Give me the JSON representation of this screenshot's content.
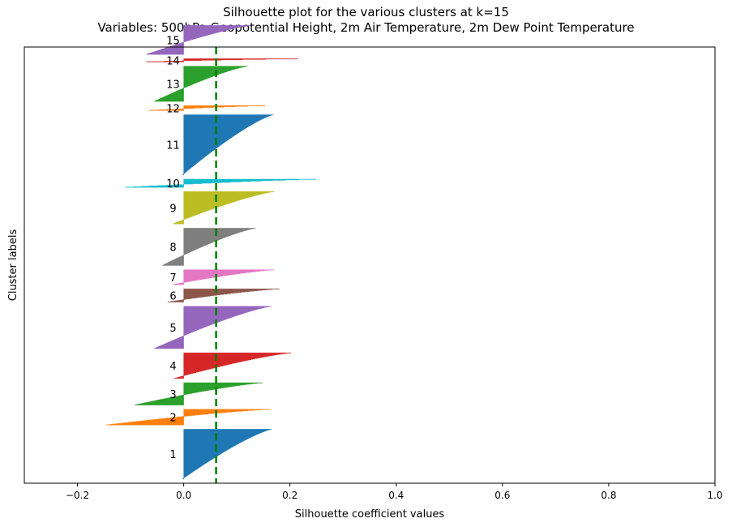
{
  "chart_data": {
    "type": "silhouette",
    "title_line1": "Silhouette plot for the various clusters at k=15",
    "title_line2": "Variables: 500hPa Geopotential Height, 2m Air Temperature, 2m Dew Point Temperature",
    "xlabel": "Silhouette coefficient values",
    "ylabel": "Cluster labels",
    "xlim": [
      -0.3,
      1.0
    ],
    "xticks": [
      "−0.2",
      "0.0",
      "0.2",
      "0.4",
      "0.6",
      "0.8",
      "1.0"
    ],
    "xtick_values": [
      -0.2,
      0.0,
      0.2,
      0.4,
      0.6,
      0.8,
      1.0
    ],
    "ylim": [
      0,
      1050
    ],
    "average_silhouette": 0.061,
    "average_line_color": "#008000",
    "clusters": [
      {
        "label": "1",
        "color": "#1f77b4",
        "size": 120,
        "max": 0.165,
        "min": -0.002
      },
      {
        "label": "2",
        "color": "#ff7f0e",
        "size": 38,
        "max": 0.162,
        "min": -0.145
      },
      {
        "label": "3",
        "color": "#2ca02c",
        "size": 54,
        "max": 0.148,
        "min": -0.092
      },
      {
        "label": "4",
        "color": "#d62728",
        "size": 62,
        "max": 0.202,
        "min": -0.018
      },
      {
        "label": "5",
        "color": "#9467bd",
        "size": 102,
        "max": 0.165,
        "min": -0.055
      },
      {
        "label": "6",
        "color": "#8c564b",
        "size": 32,
        "max": 0.18,
        "min": -0.03
      },
      {
        "label": "7",
        "color": "#e377c2",
        "size": 36,
        "max": 0.17,
        "min": -0.02
      },
      {
        "label": "8",
        "color": "#7f7f7f",
        "size": 90,
        "max": 0.135,
        "min": -0.04
      },
      {
        "label": "9",
        "color": "#bcbd22",
        "size": 78,
        "max": 0.17,
        "min": -0.02
      },
      {
        "label": "10",
        "color": "#17becf",
        "size": 20,
        "max": 0.25,
        "min": -0.11
      },
      {
        "label": "11",
        "color": "#1f77b4",
        "size": 145,
        "max": 0.168,
        "min": -0.002
      },
      {
        "label": "12",
        "color": "#ff7f0e",
        "size": 12,
        "max": 0.153,
        "min": -0.065
      },
      {
        "label": "13",
        "color": "#2ca02c",
        "size": 85,
        "max": 0.12,
        "min": -0.055
      },
      {
        "label": "14",
        "color": "#d62728",
        "size": 8,
        "max": 0.215,
        "min": -0.07
      },
      {
        "label": "15",
        "color": "#9467bd",
        "size": 70,
        "max": 0.127,
        "min": -0.07
      }
    ]
  }
}
